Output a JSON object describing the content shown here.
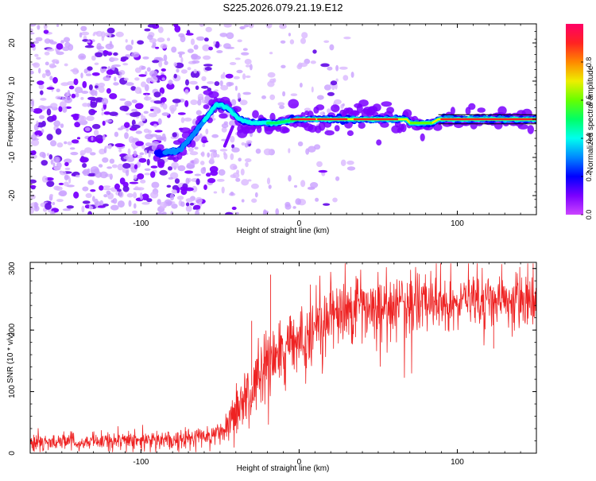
{
  "title": "S225.2026.079.21.19.E12",
  "colors": {
    "frame": "#000000",
    "snr_line": "#ee2222",
    "background": "#ffffff"
  },
  "chart_data": [
    {
      "type": "heatmap",
      "name": "spectrogram",
      "xlabel": "Height of straight line (km)",
      "ylabel": "Frequency (Hz)",
      "xlim": [
        -170,
        150
      ],
      "ylim": [
        -25,
        25
      ],
      "xticks": [
        -100,
        0,
        100
      ],
      "xtick_labels": [
        "-100",
        "0",
        "100"
      ],
      "yticks": [
        -20,
        -10,
        0,
        10,
        20
      ],
      "ytick_labels": [
        "-20",
        "-10",
        "0",
        "10",
        "20"
      ],
      "colorbar": {
        "label": "Normalized spectral amplitude",
        "range": [
          0,
          1
        ],
        "ticks": [
          0.0,
          0.2,
          0.4,
          0.6,
          0.8
        ],
        "tick_labels": [
          "0.0",
          "0.2",
          "0.4",
          "0.6",
          "0.8"
        ],
        "colormap": [
          "#cc44ff",
          "#7a00ff",
          "#0000ff",
          "#0088ff",
          "#00ffee",
          "#00ff66",
          "#66ff00",
          "#eeee00",
          "#ff8800",
          "#ff2222",
          "#ff0066"
        ]
      },
      "ridge": {
        "description_points": [
          {
            "x": -88,
            "y": -9
          },
          {
            "x": -75,
            "y": -8
          },
          {
            "x": -65,
            "y": -3
          },
          {
            "x": -52,
            "y": 4
          },
          {
            "x": -45,
            "y": 3
          },
          {
            "x": -38,
            "y": 0
          },
          {
            "x": -30,
            "y": -1
          },
          {
            "x": -15,
            "y": -1
          },
          {
            "x": 0,
            "y": 0
          },
          {
            "x": 20,
            "y": 0
          },
          {
            "x": 40,
            "y": 0
          },
          {
            "x": 68,
            "y": 0
          },
          {
            "x": 70,
            "y": -1
          },
          {
            "x": 84,
            "y": -1
          },
          {
            "x": 88,
            "y": 0
          },
          {
            "x": 150,
            "y": 0
          }
        ]
      }
    },
    {
      "type": "line",
      "name": "snr",
      "xlabel": "Height of straight line (km)",
      "ylabel": "SNR (10 * v/v)",
      "xlim": [
        -170,
        150
      ],
      "ylim": [
        0,
        310
      ],
      "xticks": [
        -100,
        0,
        100
      ],
      "xtick_labels": [
        "-100",
        "0",
        "100"
      ],
      "yticks": [
        0,
        100,
        200,
        300
      ],
      "ytick_labels": [
        "0",
        "100",
        "200",
        "300"
      ],
      "trend": {
        "x": [
          -170,
          -100,
          -60,
          -45,
          -40,
          -30,
          -20,
          -10,
          0,
          10,
          20,
          30,
          50,
          80,
          110,
          150
        ],
        "y": [
          17,
          20,
          25,
          35,
          70,
          110,
          140,
          160,
          180,
          200,
          220,
          232,
          238,
          245,
          250,
          252
        ]
      },
      "noise_amplitude": {
        "x": [
          -170,
          -50,
          -40,
          0,
          20,
          150
        ],
        "y": [
          12,
          14,
          45,
          55,
          45,
          40
        ]
      },
      "notable_spikes": [
        {
          "x": -18,
          "y": 290
        },
        {
          "x": -30,
          "y": 215
        },
        {
          "x": 70,
          "y": 275
        },
        {
          "x": 123,
          "y": 170
        }
      ]
    }
  ]
}
